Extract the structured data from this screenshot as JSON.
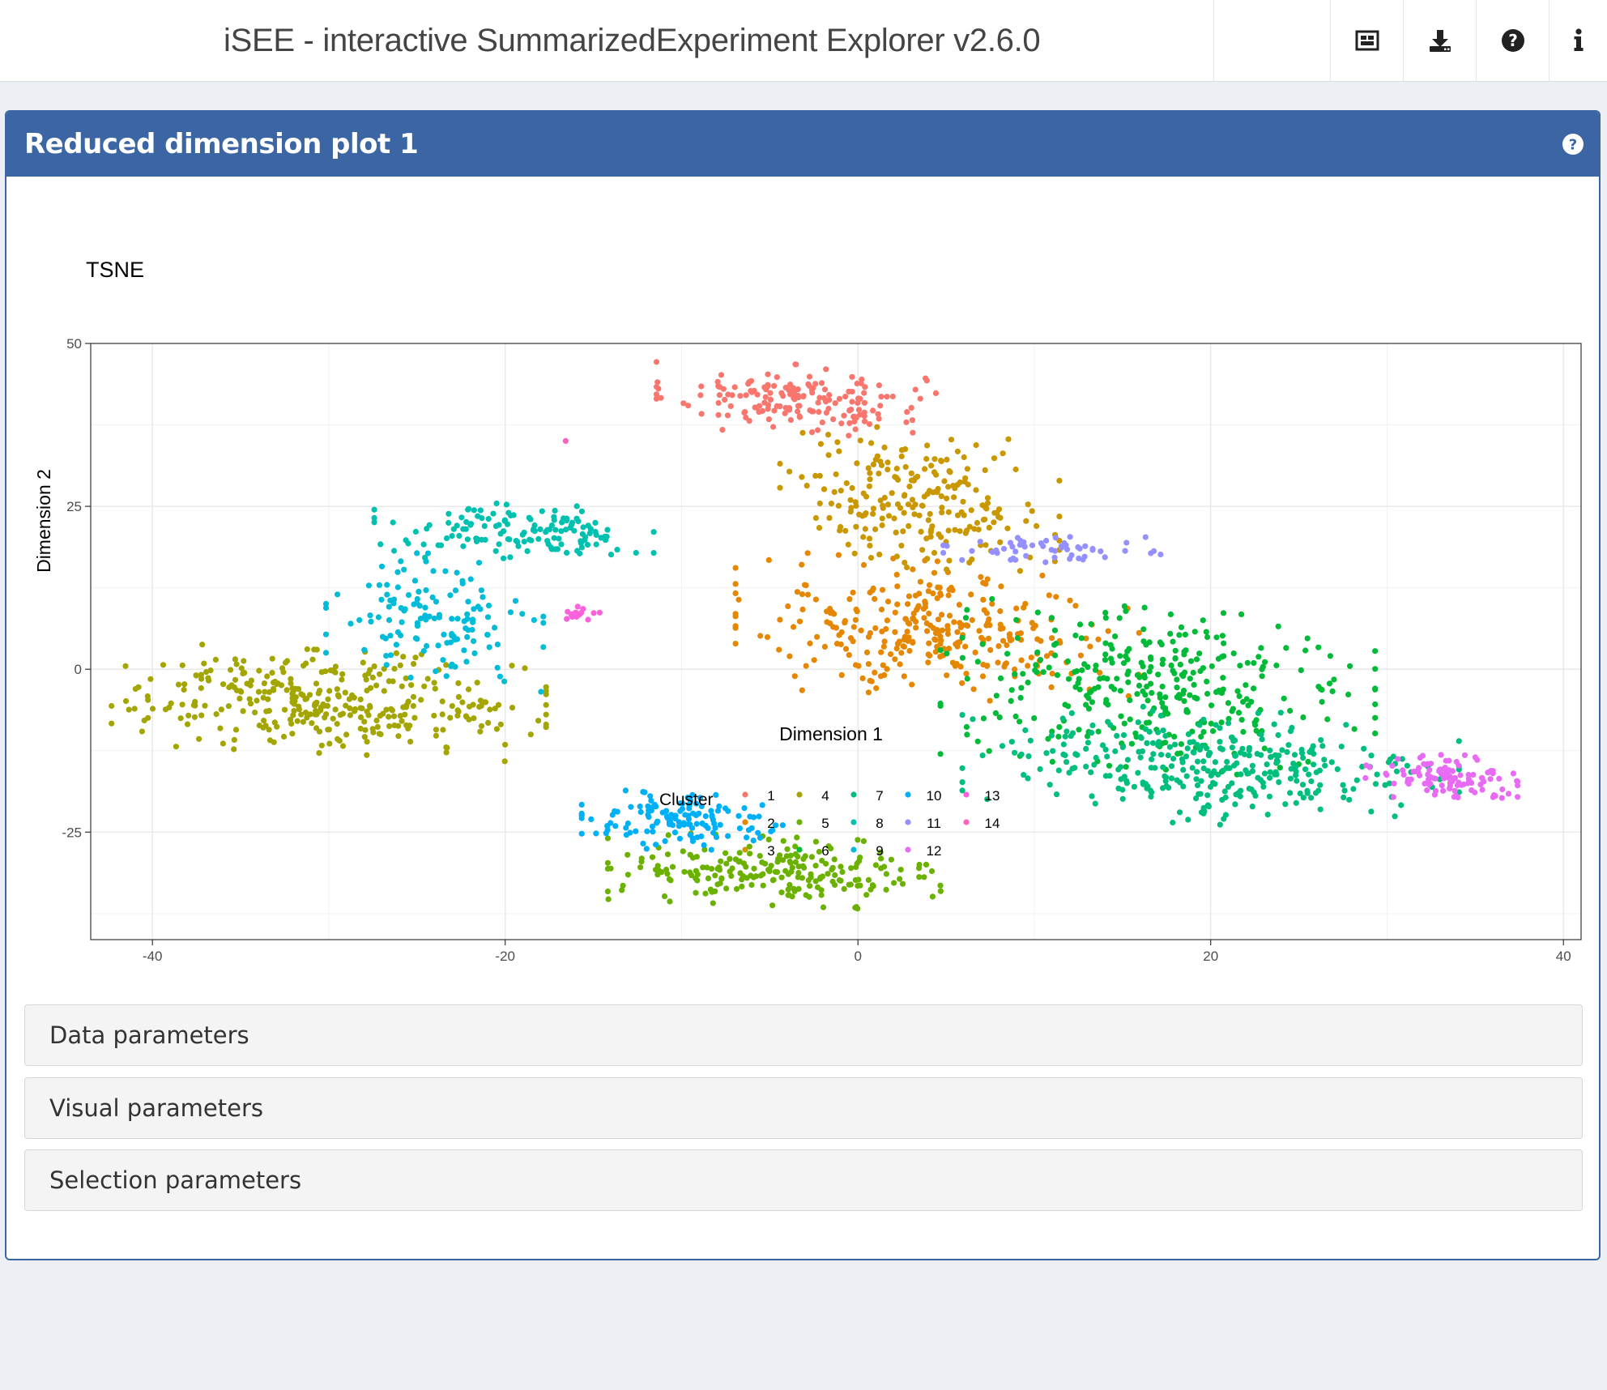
{
  "header": {
    "title": "iSEE - interactive SummarizedExperiment Explorer v2.6.0",
    "buttons": [
      {
        "icon": "panel-organization-icon"
      },
      {
        "icon": "download-icon"
      },
      {
        "icon": "question-circle-icon"
      },
      {
        "icon": "info-icon"
      }
    ]
  },
  "panel": {
    "title": "Reduced dimension plot 1",
    "help_icon": "question-circle-icon",
    "header_color": "#3c66a3"
  },
  "chart_data": {
    "type": "scatter",
    "title": "TSNE",
    "xlabel": "Dimension 1",
    "ylabel": "Dimension 2",
    "xlim": [
      -43.5,
      41
    ],
    "ylim": [
      -41.5,
      50
    ],
    "xticks": [
      -40,
      -20,
      0,
      20,
      40
    ],
    "yticks": [
      -25,
      0,
      25,
      50
    ],
    "xtick_labels": [
      "-40",
      "-20",
      "0",
      "20",
      "40"
    ],
    "ytick_labels": [
      "-25",
      "0",
      "25",
      "50"
    ],
    "grid": true,
    "legend": {
      "title": "Cluster",
      "placement": "bottom",
      "labels": [
        "1",
        "2",
        "3",
        "4",
        "5",
        "6",
        "7",
        "8",
        "9",
        "10",
        "11",
        "12",
        "13",
        "14"
      ]
    },
    "clusters": [
      {
        "label": "1",
        "color": "#F8766D",
        "center": [
          -3.5,
          41.5
        ],
        "spread": [
          4.5,
          3.0
        ],
        "n": 170
      },
      {
        "label": "2",
        "color": "#E58700",
        "center": [
          4.5,
          6.0
        ],
        "spread": [
          6.5,
          6.0
        ],
        "n": 300
      },
      {
        "label": "3",
        "color": "#C99800",
        "center": [
          3.5,
          26.0
        ],
        "spread": [
          4.5,
          6.0
        ],
        "n": 220
      },
      {
        "label": "4",
        "color": "#A3A500",
        "center": [
          -30.0,
          -5.0
        ],
        "spread": [
          7.0,
          4.5
        ],
        "n": 340
      },
      {
        "label": "5",
        "color": "#6BB100",
        "center": [
          -4.5,
          -31.0
        ],
        "spread": [
          5.5,
          3.0
        ],
        "n": 220
      },
      {
        "label": "6",
        "color": "#00BA38",
        "center": [
          17.0,
          -3.0
        ],
        "spread": [
          7.0,
          7.0
        ],
        "n": 330
      },
      {
        "label": "7",
        "color": "#00BF7D",
        "center": [
          20.0,
          -15.0
        ],
        "spread": [
          8.0,
          5.0
        ],
        "n": 330
      },
      {
        "label": "8",
        "color": "#00C0AF",
        "center": [
          -19.5,
          21.0
        ],
        "spread": [
          4.5,
          2.5
        ],
        "n": 140
      },
      {
        "label": "9",
        "color": "#00BCD8",
        "center": [
          -24.0,
          8.0
        ],
        "spread": [
          3.5,
          5.5
        ],
        "n": 130
      },
      {
        "label": "10",
        "color": "#00B0F6",
        "center": [
          -9.5,
          -23.5
        ],
        "spread": [
          3.5,
          2.5
        ],
        "n": 130
      },
      {
        "label": "11",
        "color": "#9590FF",
        "center": [
          11.0,
          18.5
        ],
        "spread": [
          3.5,
          1.2
        ],
        "n": 55
      },
      {
        "label": "12",
        "color": "#E76BF3",
        "center": [
          33.0,
          -16.5
        ],
        "spread": [
          2.5,
          2.0
        ],
        "n": 110
      },
      {
        "label": "13",
        "color": "#FA62DB",
        "center": [
          -15.5,
          8.5
        ],
        "spread": [
          0.8,
          0.6
        ],
        "n": 14
      },
      {
        "label": "14",
        "color": "#FF62BC",
        "center": [
          -16.5,
          35.0
        ],
        "spread": [
          0.1,
          0.1
        ],
        "n": 1
      }
    ]
  },
  "sections": [
    {
      "label": "Data parameters"
    },
    {
      "label": "Visual parameters"
    },
    {
      "label": "Selection parameters"
    }
  ]
}
